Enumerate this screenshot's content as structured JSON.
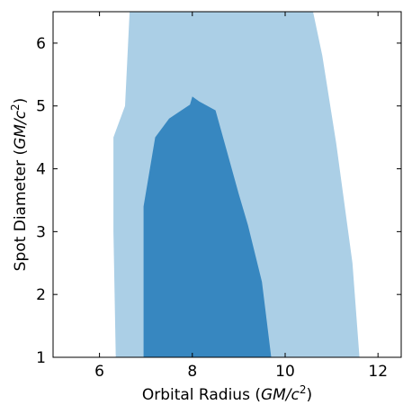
{
  "chart_data": {
    "type": "area",
    "title": "",
    "xlabel": "Orbital Radius (GM/c²)",
    "ylabel": "Spot Diameter (GM/c²)",
    "xlim": [
      5,
      12.5
    ],
    "ylim": [
      1,
      6.5
    ],
    "xticks": [
      6,
      8,
      10,
      12
    ],
    "yticks": [
      1,
      2,
      3,
      4,
      5,
      6
    ],
    "tick_direction": "in",
    "grid": false,
    "legend": "none",
    "series": [
      {
        "color": "#abcfe6",
        "polygon": [
          [
            6.35,
            1.0
          ],
          [
            6.3,
            3.0
          ],
          [
            6.3,
            4.5
          ],
          [
            6.55,
            5.0
          ],
          [
            6.65,
            6.5
          ],
          [
            10.6,
            6.5
          ],
          [
            10.8,
            5.8
          ],
          [
            11.1,
            4.4
          ],
          [
            11.45,
            2.5
          ],
          [
            11.6,
            1.0
          ]
        ]
      },
      {
        "color": "#3787c0",
        "polygon": [
          [
            6.95,
            1.0
          ],
          [
            6.95,
            3.4
          ],
          [
            7.2,
            4.5
          ],
          [
            7.5,
            4.8
          ],
          [
            7.95,
            5.02
          ],
          [
            8.0,
            5.15
          ],
          [
            8.15,
            5.07
          ],
          [
            8.5,
            4.93
          ],
          [
            8.7,
            4.4
          ],
          [
            9.0,
            3.6
          ],
          [
            9.2,
            3.1
          ],
          [
            9.5,
            2.2
          ],
          [
            9.7,
            1.0
          ]
        ]
      }
    ]
  }
}
